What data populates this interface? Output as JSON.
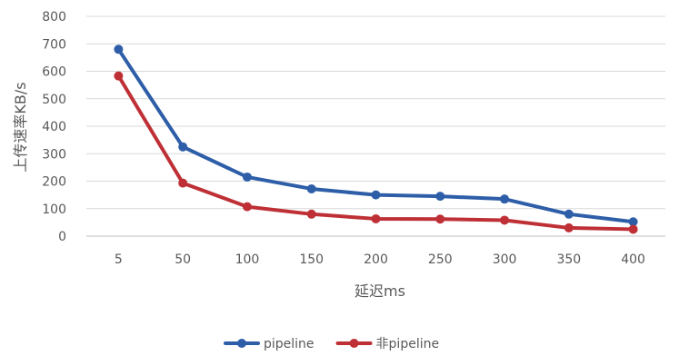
{
  "chart_data": {
    "type": "line",
    "title": "",
    "xlabel": "延迟ms",
    "ylabel": "上传速率KB/s",
    "categories": [
      "5",
      "50",
      "100",
      "150",
      "200",
      "250",
      "300",
      "350",
      "400"
    ],
    "ylim": [
      0,
      800
    ],
    "yticks": [
      0,
      100,
      200,
      300,
      400,
      500,
      600,
      700,
      800
    ],
    "grid": true,
    "legend_position": "bottom",
    "series": [
      {
        "name": "pipeline",
        "color": "#2e5ea8",
        "values": [
          680,
          325,
          215,
          172,
          150,
          145,
          135,
          80,
          52
        ]
      },
      {
        "name": "非pipeline",
        "color": "#be3036",
        "values": [
          583,
          193,
          107,
          80,
          63,
          62,
          58,
          30,
          25
        ]
      }
    ]
  }
}
